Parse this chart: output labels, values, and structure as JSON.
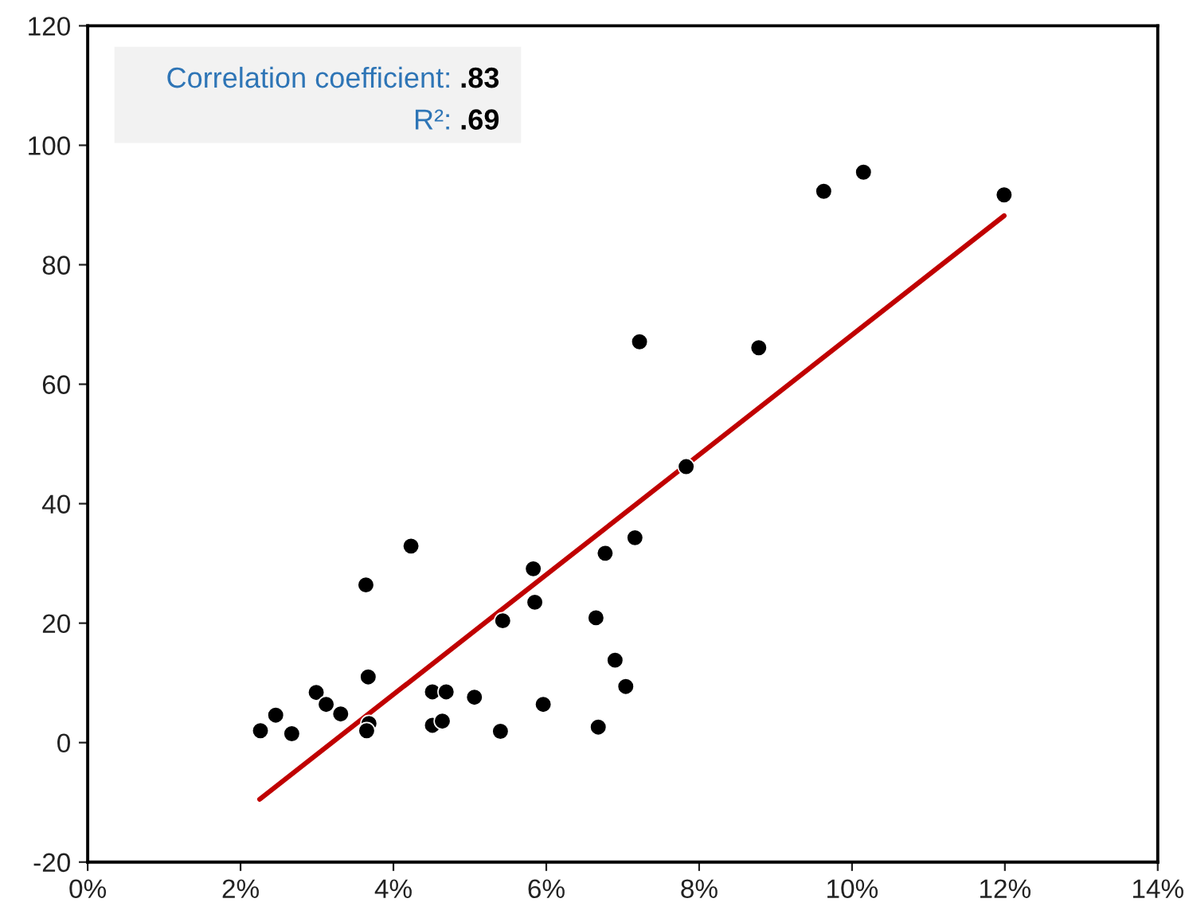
{
  "chart_data": {
    "type": "scatter",
    "annotations": [
      "Correlation coefficient: .83",
      "R²: .69"
    ],
    "series": [
      {
        "color": "#000000",
        "marker": "circle",
        "x": [
          2.26,
          2.46,
          2.67,
          2.99,
          3.12,
          3.31,
          3.64,
          3.67,
          3.68,
          3.65,
          4.23,
          4.51,
          4.69,
          4.51,
          4.64,
          5.06,
          5.43,
          5.4,
          5.83,
          5.85,
          5.96,
          6.65,
          6.68,
          6.77,
          6.9,
          7.04,
          7.16,
          7.83,
          9.63,
          10.15,
          11.99,
          7.22,
          8.78
        ],
        "values": [
          2.0,
          4.6,
          1.5,
          8.4,
          6.4,
          4.8,
          26.4,
          11.0,
          3.2,
          2.0,
          32.9,
          8.5,
          8.5,
          2.9,
          3.6,
          7.6,
          20.4,
          1.9,
          29.1,
          23.5,
          6.4,
          20.9,
          2.6,
          31.7,
          13.8,
          9.4,
          34.3,
          46.2,
          92.3,
          95.5,
          91.7,
          67.1,
          66.1
        ]
      },
      {
        "type": "line",
        "color": "#c00000",
        "line_style": "solid",
        "x": [
          2.25,
          11.99
        ],
        "values": [
          -9.5,
          88.2
        ]
      }
    ],
    "xlim": [
      0,
      14
    ],
    "xticks": [
      {
        "value": 0,
        "label": "0%"
      },
      {
        "value": 2,
        "label": "2%"
      },
      {
        "value": 4,
        "label": "4%"
      },
      {
        "value": 6,
        "label": "6%"
      },
      {
        "value": 8,
        "label": "8%"
      },
      {
        "value": 10,
        "label": "10%"
      },
      {
        "value": 12,
        "label": "12%"
      },
      {
        "value": 14,
        "label": "14%"
      }
    ],
    "ylim": [
      -20,
      120
    ],
    "yticks": [
      -20,
      0,
      20,
      40,
      60,
      80,
      100,
      120
    ],
    "grid": false,
    "legend": false
  }
}
